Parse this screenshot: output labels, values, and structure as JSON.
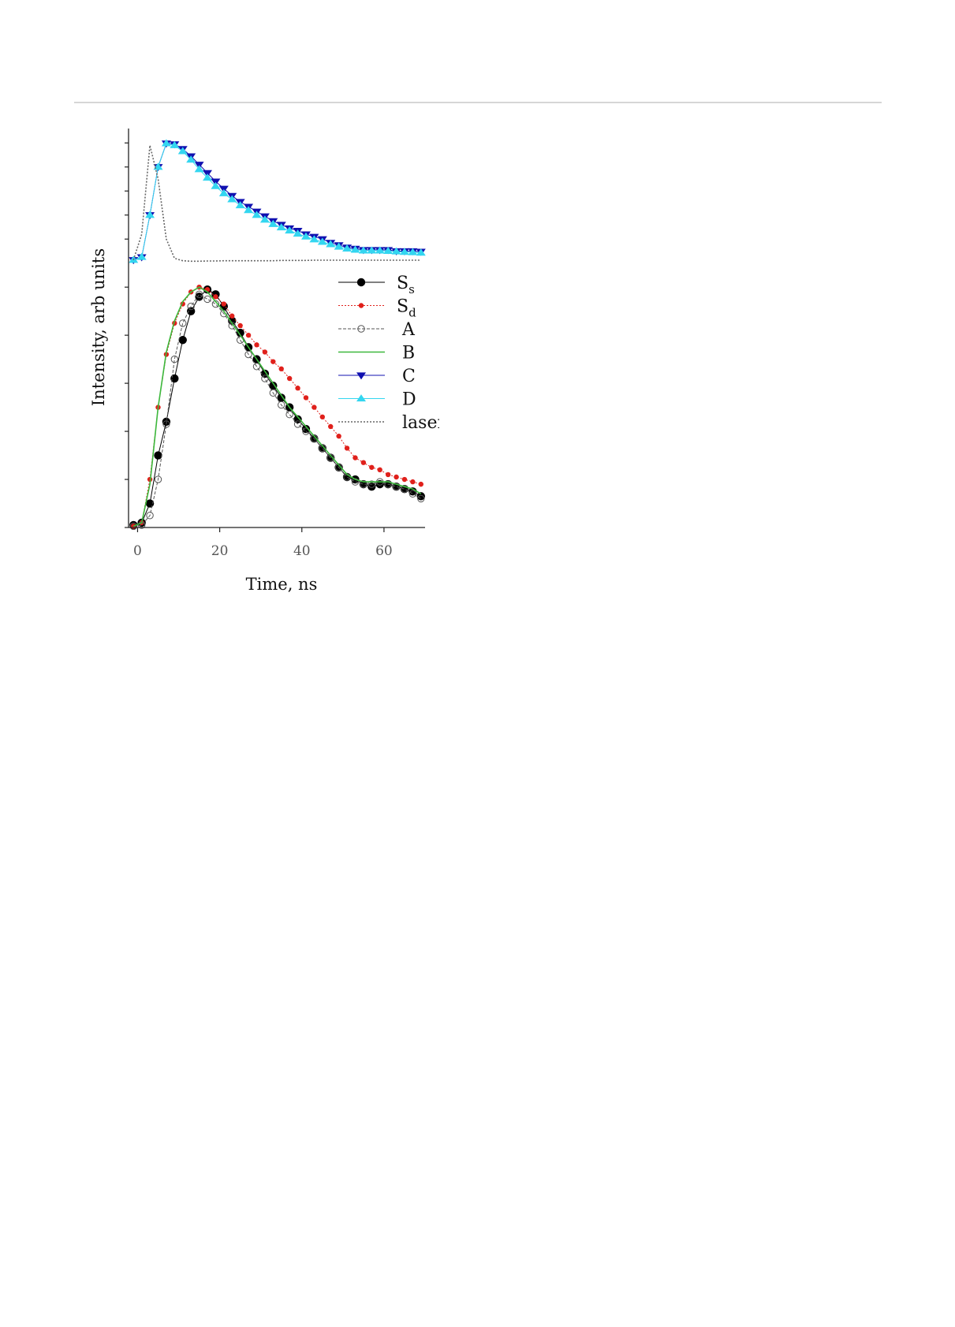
{
  "chart_data": {
    "type": "line",
    "xlabel": "Time, ns",
    "ylabel": "Intensity, arb units",
    "x": [
      -1,
      1,
      3,
      5,
      7,
      9,
      11,
      13,
      15,
      17,
      19,
      21,
      23,
      25,
      27,
      29,
      31,
      33,
      35,
      37,
      39,
      41,
      43,
      45,
      47,
      49,
      51,
      53,
      55,
      57,
      59,
      61,
      63,
      65,
      67,
      69
    ],
    "xlim": [
      -2.2,
      70
    ],
    "xticks": [
      0,
      20,
      40,
      60
    ],
    "ylim": [
      0,
      1.66
    ],
    "yticks": [
      0,
      0.2,
      0.4,
      0.6,
      0.8,
      1,
      1.2,
      1.3,
      1.4,
      1.5,
      1.6
    ],
    "series": [
      {
        "name": "S",
        "subscript": "s",
        "color": "#000000",
        "marker": "filled-circle",
        "line": "solid",
        "values": [
          0.01,
          0.02,
          0.1,
          0.3,
          0.44,
          0.62,
          0.78,
          0.9,
          0.96,
          0.99,
          0.97,
          0.92,
          0.86,
          0.81,
          0.75,
          0.7,
          0.64,
          0.59,
          0.54,
          0.5,
          0.45,
          0.41,
          0.37,
          0.33,
          0.29,
          0.25,
          0.21,
          0.2,
          0.18,
          0.17,
          0.18,
          0.18,
          0.17,
          0.16,
          0.15,
          0.13
        ]
      },
      {
        "name": "S",
        "subscript": "d",
        "color": "#e0201b",
        "marker": "dot",
        "line": "dotted",
        "values": [
          0.005,
          0.02,
          0.2,
          0.5,
          0.72,
          0.85,
          0.93,
          0.98,
          1.0,
          0.99,
          0.96,
          0.93,
          0.88,
          0.84,
          0.8,
          0.76,
          0.73,
          0.69,
          0.66,
          0.62,
          0.58,
          0.54,
          0.5,
          0.46,
          0.42,
          0.38,
          0.33,
          0.29,
          0.27,
          0.25,
          0.24,
          0.22,
          0.21,
          0.2,
          0.19,
          0.18
        ]
      },
      {
        "name": "A",
        "color": "#555555",
        "marker": "open-circle",
        "line": "dashed",
        "values": [
          0.005,
          0.01,
          0.05,
          0.2,
          0.43,
          0.7,
          0.85,
          0.92,
          0.97,
          0.95,
          0.93,
          0.89,
          0.84,
          0.78,
          0.72,
          0.67,
          0.62,
          0.56,
          0.51,
          0.47,
          0.43,
          0.4,
          0.37,
          0.33,
          0.29,
          0.25,
          0.21,
          0.19,
          0.18,
          0.18,
          0.19,
          0.18,
          0.17,
          0.16,
          0.14,
          0.12
        ]
      },
      {
        "name": "B",
        "color": "#3cb83c",
        "marker": "none",
        "line": "solid",
        "values": [
          0.005,
          0.02,
          0.18,
          0.5,
          0.73,
          0.86,
          0.94,
          0.98,
          1.0,
          0.98,
          0.94,
          0.9,
          0.85,
          0.8,
          0.75,
          0.7,
          0.65,
          0.6,
          0.55,
          0.5,
          0.46,
          0.42,
          0.38,
          0.34,
          0.3,
          0.26,
          0.22,
          0.2,
          0.19,
          0.19,
          0.19,
          0.19,
          0.18,
          0.17,
          0.16,
          0.14
        ]
      },
      {
        "name": "C",
        "color": "#1010b0",
        "marker": "triangle-down",
        "line": "solid",
        "values": [
          1.113,
          1.125,
          1.3,
          1.5,
          1.598,
          1.595,
          1.575,
          1.545,
          1.51,
          1.475,
          1.44,
          1.41,
          1.38,
          1.355,
          1.335,
          1.315,
          1.295,
          1.275,
          1.26,
          1.245,
          1.235,
          1.22,
          1.21,
          1.2,
          1.185,
          1.175,
          1.165,
          1.16,
          1.155,
          1.155,
          1.155,
          1.155,
          1.15,
          1.15,
          1.15,
          1.148
        ]
      },
      {
        "name": "D",
        "color": "#33d6f0",
        "marker": "triangle-up",
        "line": "solid",
        "values": [
          1.113,
          1.125,
          1.3,
          1.5,
          1.598,
          1.59,
          1.565,
          1.53,
          1.49,
          1.455,
          1.42,
          1.39,
          1.365,
          1.34,
          1.32,
          1.3,
          1.28,
          1.262,
          1.248,
          1.235,
          1.222,
          1.21,
          1.198,
          1.188,
          1.178,
          1.168,
          1.16,
          1.155,
          1.152,
          1.152,
          1.152,
          1.15,
          1.148,
          1.146,
          1.145,
          1.143
        ]
      },
      {
        "name": "laser",
        "color": "#666666",
        "marker": "none",
        "line": "dotted",
        "values": [
          1.113,
          1.22,
          1.59,
          1.45,
          1.2,
          1.12,
          1.11,
          1.108,
          1.108,
          1.109,
          1.109,
          1.11,
          1.11,
          1.11,
          1.11,
          1.11,
          1.11,
          1.11,
          1.111,
          1.111,
          1.111,
          1.111,
          1.112,
          1.112,
          1.112,
          1.112,
          1.112,
          1.112,
          1.112,
          1.112,
          1.112,
          1.112,
          1.112,
          1.112,
          1.112,
          1.112
        ]
      }
    ]
  }
}
